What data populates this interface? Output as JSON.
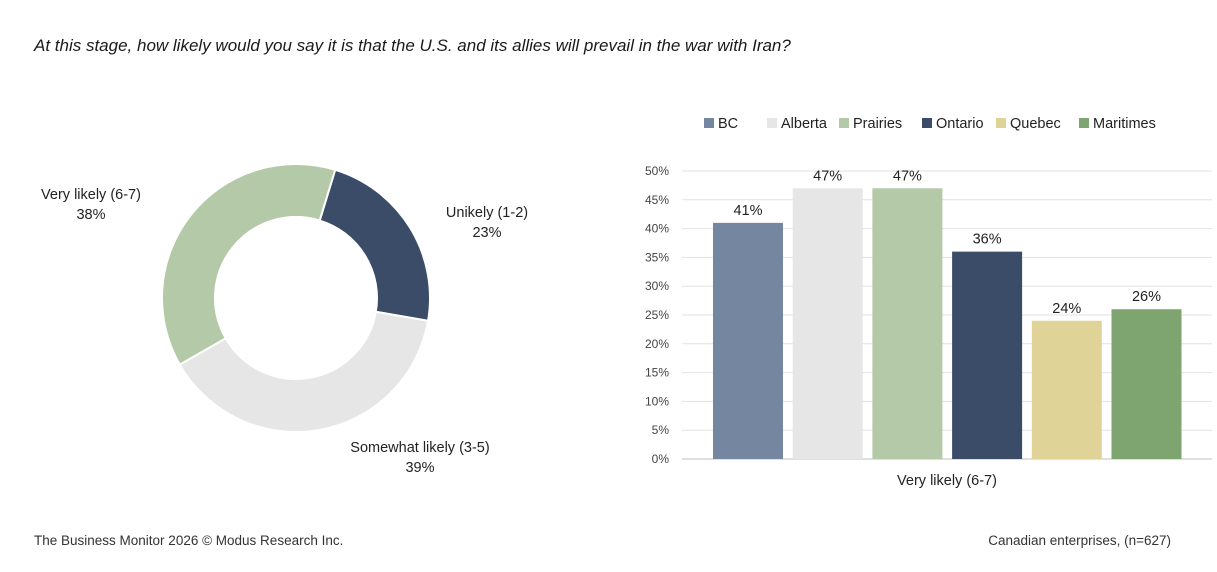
{
  "question": "At this stage, how likely would you say it is that the U.S. and its allies will prevail in the war with Iran?",
  "footer": {
    "source": "The Business Monitor 2026 © Modus Research Inc.",
    "sample": "Canadian enterprises, (n=627)"
  },
  "chart_data": [
    {
      "type": "pie",
      "variant": "donut",
      "slices": [
        {
          "label": "Unikely (1-2)",
          "value": 23,
          "value_label": "23%",
          "color": "#3b4c68"
        },
        {
          "label": "Somewhat likely (3-5)",
          "value": 39,
          "value_label": "39%",
          "color": "#e6e6e6"
        },
        {
          "label": "Very likely (6-7)",
          "value": 38,
          "value_label": "38%",
          "color": "#b3c9a7"
        }
      ]
    },
    {
      "type": "bar",
      "categories": [
        "Very likely (6-7)"
      ],
      "series": [
        {
          "name": "BC",
          "values": [
            41
          ],
          "value_labels": [
            "41%"
          ],
          "color": "#7587a0"
        },
        {
          "name": "Alberta",
          "values": [
            47
          ],
          "value_labels": [
            "47%"
          ],
          "color": "#e6e6e6"
        },
        {
          "name": "Prairies",
          "values": [
            47
          ],
          "value_labels": [
            "47%"
          ],
          "color": "#b3c9a7"
        },
        {
          "name": "Ontario",
          "values": [
            36
          ],
          "value_labels": [
            "36%"
          ],
          "color": "#3b4c68"
        },
        {
          "name": "Quebec",
          "values": [
            24
          ],
          "value_labels": [
            "24%"
          ],
          "color": "#e0d398"
        },
        {
          "name": "Maritimes",
          "values": [
            26
          ],
          "value_labels": [
            "26%"
          ],
          "color": "#7ea56f"
        }
      ],
      "ylim": [
        0,
        50
      ],
      "yticks": [
        "0%",
        "5%",
        "10%",
        "15%",
        "20%",
        "25%",
        "30%",
        "35%",
        "40%",
        "45%",
        "50%"
      ],
      "grid": true,
      "legend": "top"
    }
  ]
}
